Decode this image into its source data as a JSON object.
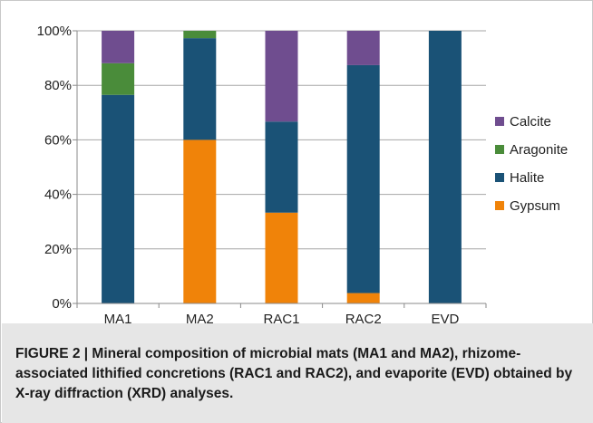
{
  "chart_data": {
    "type": "bar",
    "stacked": true,
    "categories": [
      "MA1",
      "MA2",
      "RAC1",
      "RAC2",
      "EVD"
    ],
    "series": [
      {
        "name": "Gypsum",
        "color": "#f08309",
        "values": [
          0,
          60,
          33.3,
          3.8,
          0
        ]
      },
      {
        "name": "Halite",
        "color": "#1a5276",
        "values": [
          76.5,
          37.3,
          33.4,
          83.6,
          100
        ]
      },
      {
        "name": "Aragonite",
        "color": "#4a8c3a",
        "values": [
          11.6,
          2.7,
          0,
          0,
          0
        ]
      },
      {
        "name": "Calcite",
        "color": "#6f4d8f",
        "values": [
          11.9,
          0,
          33.3,
          12.6,
          0
        ]
      }
    ],
    "ylim": [
      0,
      100
    ],
    "yticks": [
      "0%",
      "20%",
      "40%",
      "60%",
      "80%",
      "100%"
    ],
    "grid": true,
    "legend_position": "right",
    "legend_order": [
      "Calcite",
      "Aragonite",
      "Halite",
      "Gypsum"
    ]
  },
  "caption": {
    "text": "FIGURE 2 | Mineral composition of microbial mats (MA1 and MA2), rhizome-associated lithified concretions (RAC1 and RAC2), and evaporite (EVD) obtained by X-ray diffraction (XRD) analyses."
  }
}
